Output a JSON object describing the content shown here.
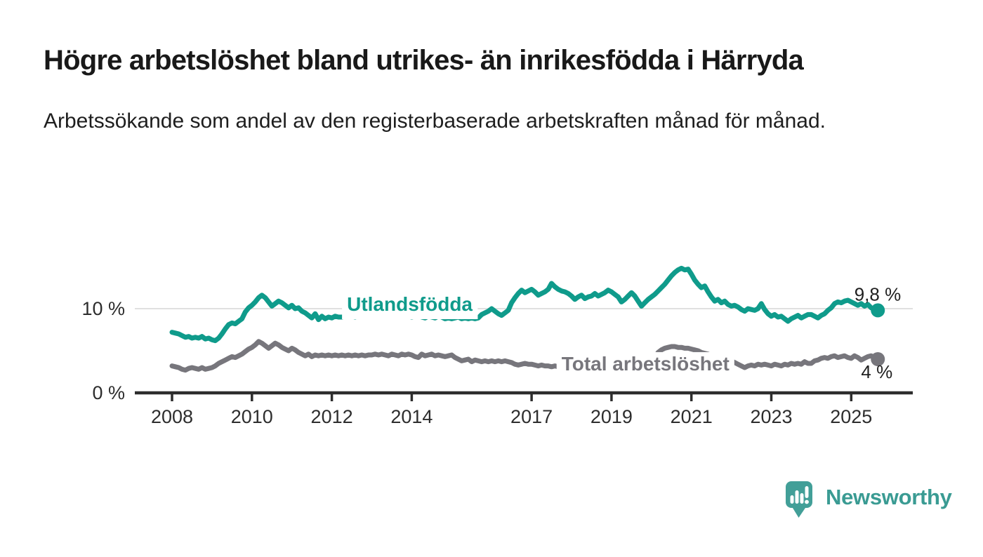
{
  "header": {
    "title": "Högre arbetslöshet bland utrikes- än inrikesfödda i Härryda",
    "subtitle": "Arbetssökande som andel av den registerbaserade arbetskraften månad för månad."
  },
  "chart_data": {
    "type": "line",
    "title": "Högre arbetslöshet bland utrikes- än inrikesfödda i Härryda",
    "subtitle": "Arbetssökande som andel av den registerbaserade arbetskraften månad för månad.",
    "unit": "%",
    "grid": "horizontal-10-only",
    "legend_position": "inline-labels",
    "x_axis": {
      "ticks": [
        2008,
        2010,
        2012,
        2014,
        2017,
        2019,
        2021,
        2023,
        2025
      ],
      "range": [
        2007.6,
        2026.2
      ]
    },
    "y_axis": {
      "ticks": [
        {
          "value": 0,
          "label": "0 %"
        },
        {
          "value": 10,
          "label": "10 %"
        }
      ],
      "range": [
        0,
        16.5
      ],
      "grid_values": [
        10
      ]
    },
    "colors": {
      "axis": "#2d2d2d",
      "gridline": "#e0e0e0",
      "background": "#ffffff"
    },
    "series": [
      {
        "id": "utlandsfodda",
        "name": "Utlandsfödda",
        "color": "#0f9b8b",
        "start_year": 2008,
        "step_months": 1,
        "end_label": "9,8 %",
        "end_value": 9.8,
        "label_above_end": true,
        "label_pos": {
          "year": 2013.95,
          "value": 9.75
        },
        "values": [
          7.2,
          7.1,
          7.0,
          6.8,
          6.6,
          6.7,
          6.5,
          6.6,
          6.5,
          6.7,
          6.4,
          6.5,
          6.3,
          6.2,
          6.5,
          7.0,
          7.6,
          8.1,
          8.3,
          8.2,
          8.5,
          8.8,
          9.6,
          10.1,
          10.4,
          10.8,
          11.3,
          11.6,
          11.3,
          10.8,
          10.3,
          10.6,
          10.9,
          10.7,
          10.4,
          10.1,
          10.4,
          10.0,
          10.1,
          9.7,
          9.5,
          9.2,
          8.9,
          9.4,
          8.7,
          9.1,
          8.8,
          9.0,
          8.9,
          9.1,
          9.0,
          9.0,
          9.1,
          9.2,
          9.1,
          9.0,
          9.2,
          9.1,
          9.3,
          9.2,
          9.3,
          9.2,
          9.1,
          9.3,
          9.4,
          9.2,
          9.1,
          9.3,
          9.2,
          9.4,
          9.2,
          9.1,
          9.0,
          9.1,
          9.2,
          9.0,
          8.9,
          9.1,
          9.0,
          8.9,
          9.1,
          9.0,
          8.8,
          8.9,
          8.8,
          8.9,
          9.0,
          8.8,
          8.9,
          8.8,
          8.9,
          8.8,
          8.9,
          9.3,
          9.5,
          9.7,
          10.0,
          9.7,
          9.4,
          9.2,
          9.5,
          9.8,
          10.7,
          11.3,
          11.8,
          12.2,
          11.9,
          12.1,
          12.3,
          12.0,
          11.6,
          11.8,
          12.0,
          12.3,
          13.0,
          12.6,
          12.3,
          12.1,
          12.0,
          11.8,
          11.5,
          11.1,
          11.4,
          11.6,
          11.2,
          11.4,
          11.5,
          11.8,
          11.5,
          11.7,
          11.9,
          12.2,
          12.0,
          11.7,
          11.4,
          10.8,
          11.1,
          11.5,
          11.9,
          11.5,
          10.9,
          10.3,
          10.7,
          11.1,
          11.4,
          11.7,
          12.1,
          12.5,
          12.9,
          13.4,
          13.9,
          14.3,
          14.6,
          14.8,
          14.6,
          14.7,
          14.1,
          13.4,
          12.9,
          12.5,
          12.7,
          12.0,
          11.4,
          10.9,
          11.1,
          10.7,
          10.9,
          10.5,
          10.3,
          10.4,
          10.2,
          9.9,
          9.7,
          10.0,
          9.9,
          9.8,
          10.0,
          10.6,
          9.9,
          9.4,
          9.1,
          9.3,
          9.0,
          9.1,
          8.8,
          8.5,
          8.8,
          9.0,
          9.2,
          8.9,
          9.1,
          9.3,
          9.3,
          9.1,
          8.9,
          9.2,
          9.4,
          9.8,
          10.1,
          10.6,
          10.8,
          10.7,
          10.9,
          11.0,
          10.8,
          10.6,
          10.4,
          10.6,
          10.3,
          10.5,
          10.1,
          9.9,
          9.8
        ]
      },
      {
        "id": "total-arbetsloshet",
        "name": "Total arbetslöshet",
        "color": "#77767c",
        "start_year": 2008,
        "step_months": 1,
        "end_label": "4 %",
        "end_value": 4.0,
        "label_above_end": false,
        "label_pos": {
          "year": 2019.85,
          "value": 2.67
        },
        "values": [
          3.2,
          3.1,
          3.0,
          2.8,
          2.7,
          2.9,
          3.0,
          2.9,
          2.8,
          3.0,
          2.8,
          2.9,
          3.0,
          3.2,
          3.5,
          3.7,
          3.9,
          4.1,
          4.3,
          4.2,
          4.4,
          4.6,
          4.9,
          5.2,
          5.4,
          5.7,
          6.1,
          5.9,
          5.6,
          5.3,
          5.6,
          5.9,
          5.7,
          5.4,
          5.2,
          5.0,
          5.3,
          5.1,
          4.8,
          4.6,
          4.4,
          4.6,
          4.3,
          4.5,
          4.4,
          4.5,
          4.4,
          4.5,
          4.4,
          4.5,
          4.4,
          4.5,
          4.4,
          4.5,
          4.4,
          4.5,
          4.4,
          4.5,
          4.4,
          4.5,
          4.5,
          4.6,
          4.5,
          4.6,
          4.5,
          4.4,
          4.6,
          4.5,
          4.4,
          4.6,
          4.5,
          4.6,
          4.5,
          4.3,
          4.2,
          4.6,
          4.4,
          4.5,
          4.6,
          4.4,
          4.5,
          4.4,
          4.3,
          4.4,
          4.5,
          4.2,
          4.0,
          3.8,
          3.9,
          4.0,
          3.7,
          3.9,
          3.8,
          3.7,
          3.8,
          3.7,
          3.8,
          3.7,
          3.8,
          3.7,
          3.8,
          3.7,
          3.6,
          3.4,
          3.3,
          3.4,
          3.5,
          3.4,
          3.4,
          3.3,
          3.2,
          3.3,
          3.2,
          3.2,
          3.1,
          3.2,
          3.1,
          3.0,
          3.1,
          3.0,
          3.0,
          3.1,
          3.0,
          3.1,
          3.0,
          3.1,
          3.0,
          3.1,
          3.0,
          3.1,
          3.1,
          3.2,
          3.2,
          3.1,
          3.2,
          3.1,
          3.3,
          3.2,
          3.3,
          3.4,
          3.3,
          3.4,
          3.5,
          3.6,
          3.8,
          4.2,
          4.8,
          5.1,
          5.3,
          5.4,
          5.5,
          5.5,
          5.4,
          5.4,
          5.3,
          5.3,
          5.2,
          5.1,
          5.0,
          4.8,
          4.7,
          4.6,
          4.4,
          4.2,
          4.0,
          3.9,
          3.8,
          3.8,
          3.8,
          3.6,
          3.4,
          3.2,
          3.0,
          3.2,
          3.3,
          3.2,
          3.4,
          3.3,
          3.4,
          3.3,
          3.2,
          3.4,
          3.3,
          3.2,
          3.4,
          3.3,
          3.5,
          3.4,
          3.5,
          3.4,
          3.7,
          3.5,
          3.5,
          3.8,
          3.9,
          4.1,
          4.2,
          4.1,
          4.3,
          4.4,
          4.2,
          4.3,
          4.4,
          4.2,
          4.1,
          4.4,
          4.2,
          3.9,
          4.1,
          4.3,
          4.4,
          4.2,
          4.0
        ]
      }
    ]
  },
  "footer": {
    "brand": "Newsworthy",
    "brand_color": "#3a9b93",
    "icon": "newsworthy-pin-logo",
    "icon_color": "#429f98"
  }
}
